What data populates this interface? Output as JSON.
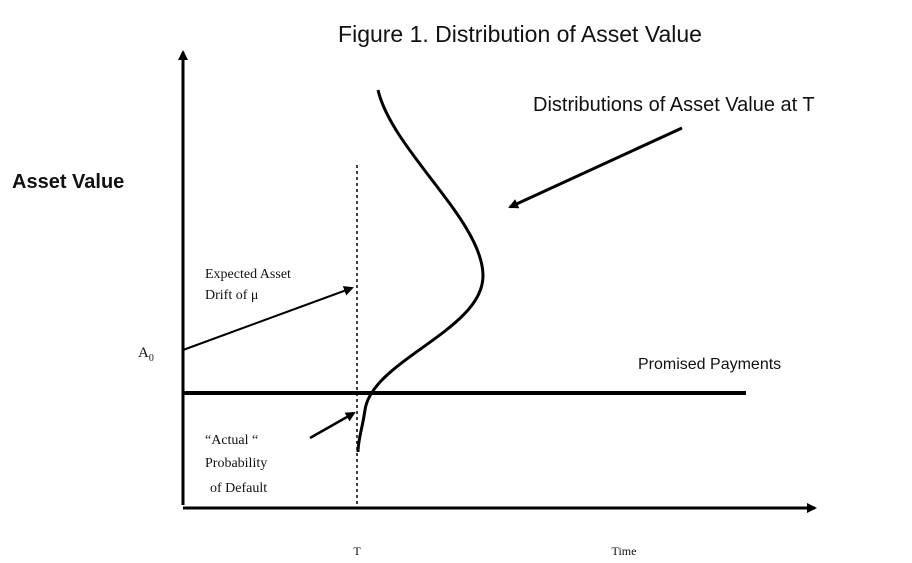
{
  "title": "Figure 1. Distribution of Asset Value",
  "axes": {
    "y_label": "Asset Value",
    "x_label": "Time",
    "t_label": "T"
  },
  "labels": {
    "initial_value": {
      "symbol": "A",
      "subscript": "0"
    },
    "drift": [
      "Expected Asset",
      "Drift of μ"
    ],
    "promised_payments": "Promised Payments",
    "default": [
      "“Actual “",
      "Probability",
      "of Default"
    ],
    "distributions": "Distributions of Asset Value at T"
  }
}
